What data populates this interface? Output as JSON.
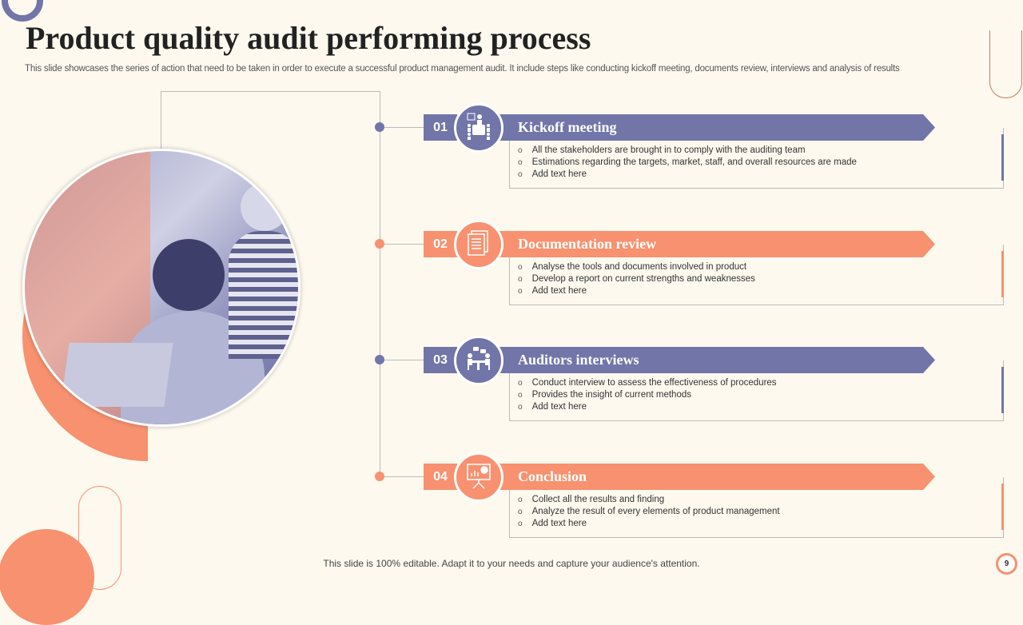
{
  "title": "Product quality audit performing process",
  "subtitle": "This slide showcases the series of action that need to be taken in order to execute a successful product management audit. It include steps like conducting kickoff meeting, documents review, interviews and analysis of results",
  "colors": {
    "purple": "#7175a8",
    "orange": "#f7916f",
    "background": "#fdf9ef"
  },
  "steps": [
    {
      "number": "01",
      "title": "Kickoff meeting",
      "icon": "presentation-meeting-icon",
      "color": "#7175a8",
      "bullets": [
        "All the stakeholders are brought in to comply with the auditing team",
        "Estimations regarding the targets, market, staff, and overall resources are made",
        "Add text here"
      ]
    },
    {
      "number": "02",
      "title": "Documentation review",
      "icon": "documents-icon",
      "color": "#f7916f",
      "bullets": [
        "Analyse the tools and documents involved in product",
        "Develop a report on current strengths and weaknesses",
        "Add text here"
      ]
    },
    {
      "number": "03",
      "title": "Auditors interviews",
      "icon": "interview-icon",
      "color": "#7175a8",
      "bullets": [
        "Conduct interview to assess the effectiveness of procedures",
        "Provides the insight of current methods",
        "Add text here"
      ]
    },
    {
      "number": "04",
      "title": "Conclusion",
      "icon": "presentation-chart-icon",
      "color": "#f7916f",
      "bullets": [
        "Collect all the results and finding",
        "Analyze  the result of every  elements of product management",
        "Add text here"
      ]
    }
  ],
  "footer": "This slide is 100% editable. Adapt it to your needs and capture your audience's attention.",
  "page_number": "9"
}
